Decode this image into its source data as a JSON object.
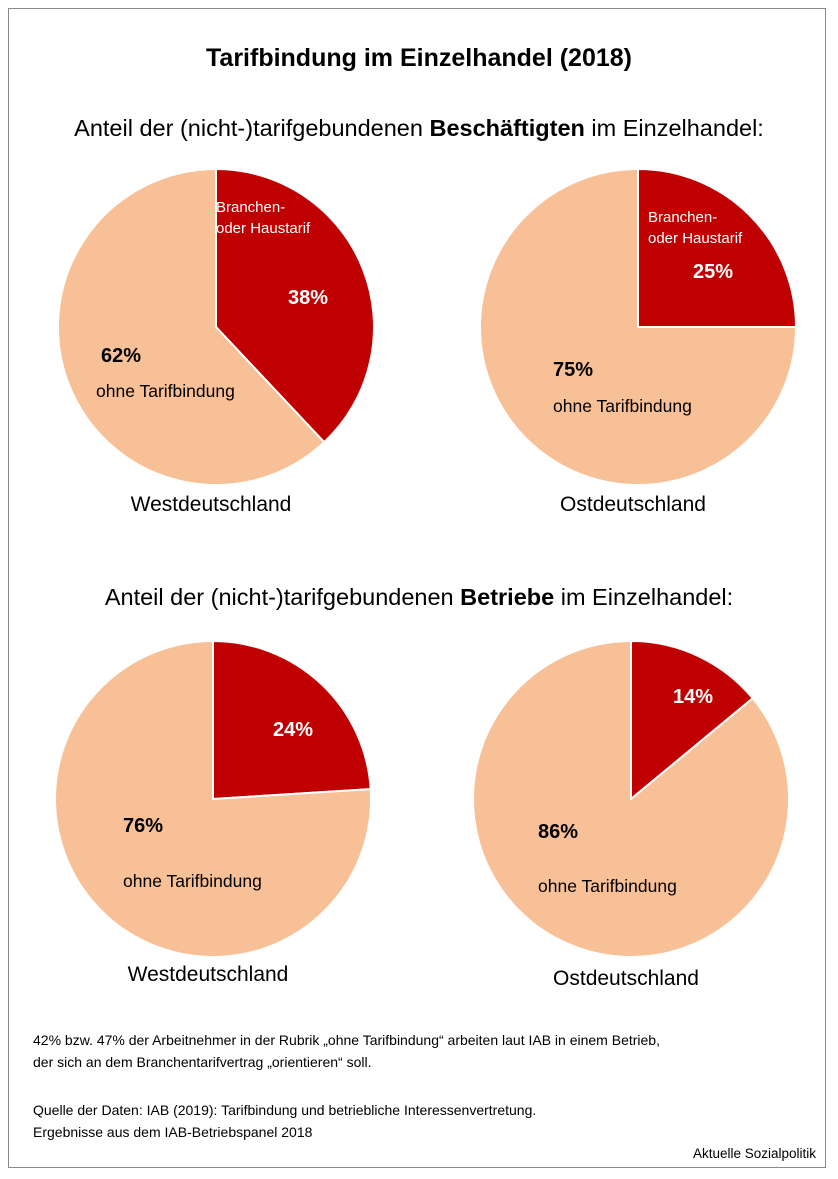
{
  "title": "Tarifbindung im Einzelhandel (2018)",
  "colors": {
    "tarif": "#C00000",
    "ohne": "#F8C096",
    "edge": "#ffffff",
    "frame": "#8a8a8a"
  },
  "chart_data": [
    {
      "type": "pie",
      "section_prefix": "Anteil der (nicht-)tarifgebundenen ",
      "section_bold": "Beschäftigten",
      "section_suffix": " im Einzelhandel:",
      "charts": [
        {
          "region": "Westdeutschland",
          "slices": [
            {
              "label": "Branchen-\noder Haustarif",
              "value": 38,
              "value_label": "38%",
              "color": "#C00000"
            },
            {
              "label": "ohne Tarifbindung",
              "value": 62,
              "value_label": "62%",
              "color": "#F8C096"
            }
          ]
        },
        {
          "region": "Ostdeutschland",
          "slices": [
            {
              "label": "Branchen-\noder Haustarif",
              "value": 25,
              "value_label": "25%",
              "color": "#C00000"
            },
            {
              "label": "ohne Tarifbindung",
              "value": 75,
              "value_label": "75%",
              "color": "#F8C096"
            }
          ]
        }
      ]
    },
    {
      "type": "pie",
      "section_prefix": "Anteil der (nicht-)tarifgebundenen ",
      "section_bold": "Betriebe",
      "section_suffix": " im Einzelhandel:",
      "charts": [
        {
          "region": "Westdeutschland",
          "slices": [
            {
              "label": "",
              "value": 24,
              "value_label": "24%",
              "color": "#C00000"
            },
            {
              "label": "ohne Tarifbindung",
              "value": 76,
              "value_label": "76%",
              "color": "#F8C096"
            }
          ]
        },
        {
          "region": "Ostdeutschland",
          "slices": [
            {
              "label": "",
              "value": 14,
              "value_label": "14%",
              "color": "#C00000"
            },
            {
              "label": "ohne Tarifbindung",
              "value": 86,
              "value_label": "86%",
              "color": "#F8C096"
            }
          ]
        }
      ]
    }
  ],
  "footnote": {
    "line1": "42% bzw. 47% der Arbeitnehmer in der Rubrik „ohne Tarifbindung“ arbeiten laut IAB in einem Betrieb,",
    "line2": "der sich an dem Branchentarifvertrag „orientieren“ soll."
  },
  "source": {
    "line1": "Quelle der Daten: IAB (2019): Tarifbindung und betriebliche Interessenvertretung.",
    "line2": "Ergebnisse aus dem IAB-Betriebspanel 2018"
  },
  "credit": "Aktuelle Sozialpolitik"
}
